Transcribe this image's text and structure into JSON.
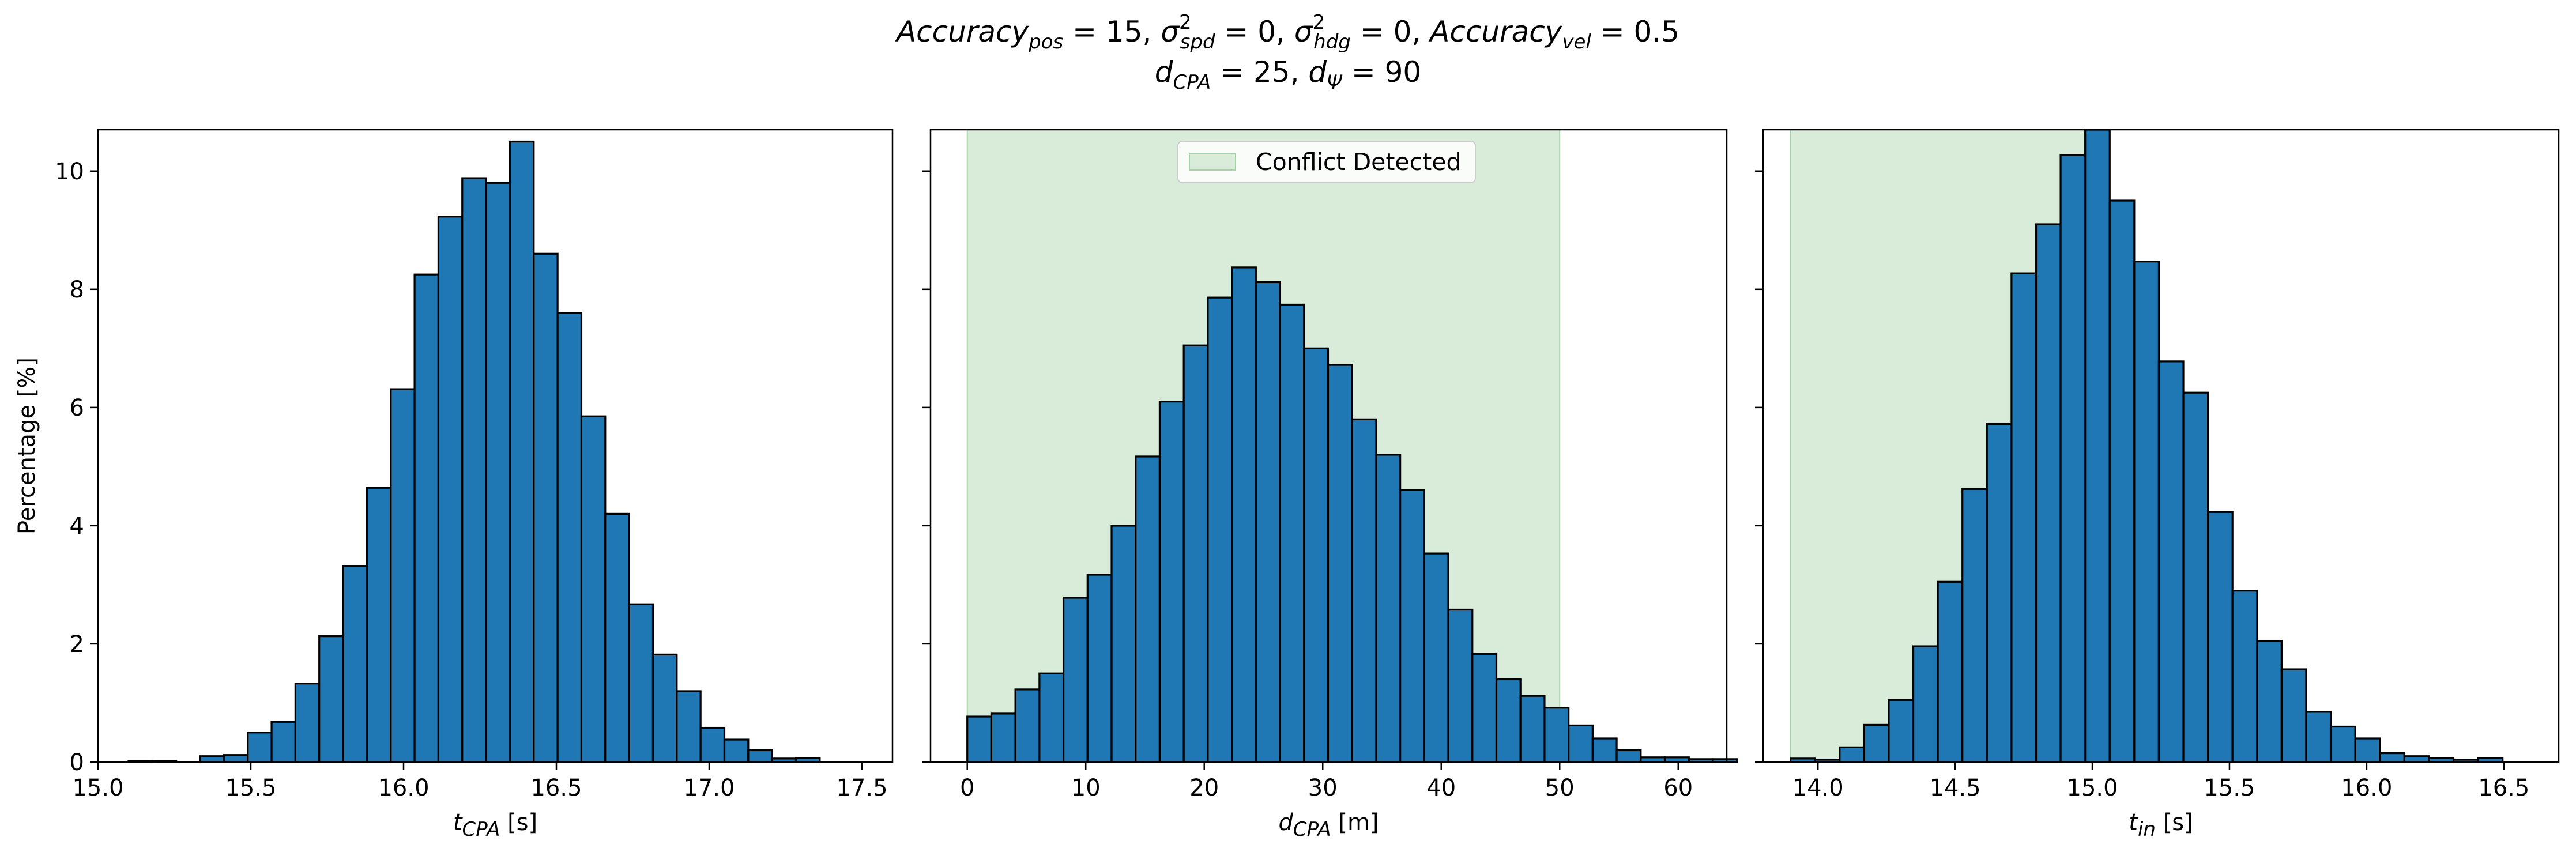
{
  "title": {
    "line1": {
      "acc_pos": "Accuracy",
      "acc_pos_sub": "pos",
      "acc_pos_val": " = 15, ",
      "sigma_spd": "σ",
      "sigma_spd_sup": "2",
      "sigma_spd_sub": "spd",
      "sigma_spd_val": " = 0, ",
      "sigma_hdg": "σ",
      "sigma_hdg_sup": "2",
      "sigma_hdg_sub": "hdg",
      "sigma_hdg_val": " = 0, ",
      "acc_vel": "Accuracy",
      "acc_vel_sub": "vel",
      "acc_vel_val": " = 0.5"
    },
    "line2": {
      "dcpa": "d",
      "dcpa_sub": "CPA",
      "dcpa_val": " = 25, ",
      "dpsi": "d",
      "dpsi_sub": "Ψ",
      "dpsi_val": " = 90"
    }
  },
  "colors": {
    "bar_fill": "#1f77b4",
    "bar_edge": "#000000",
    "conflict_fill": "#d9ecd9",
    "conflict_edge": "#a6d3a6"
  },
  "chart_data": [
    {
      "type": "bar",
      "ylabel": "Percentage [%]",
      "xlabel": {
        "var": "t",
        "sub": "CPA",
        "unit": " [s]"
      },
      "xlim": [
        15.0,
        17.6
      ],
      "ylim": [
        0,
        10.7
      ],
      "xticks": [
        {
          "v": 15.0,
          "label": "15.0"
        },
        {
          "v": 15.5,
          "label": "15.5"
        },
        {
          "v": 16.0,
          "label": "16.0"
        },
        {
          "v": 16.5,
          "label": "16.5"
        },
        {
          "v": 17.0,
          "label": "17.0"
        },
        {
          "v": 17.5,
          "label": "17.5"
        }
      ],
      "yticks": [
        {
          "v": 0,
          "label": "0"
        },
        {
          "v": 2,
          "label": "2"
        },
        {
          "v": 4,
          "label": "4"
        },
        {
          "v": 6,
          "label": "6"
        },
        {
          "v": 8,
          "label": "8"
        },
        {
          "v": 10,
          "label": "10"
        }
      ],
      "bin_start": 15.1,
      "bin_width": 0.078,
      "values": [
        0.02,
        0.02,
        0.0,
        0.1,
        0.12,
        0.5,
        0.68,
        1.33,
        2.13,
        3.32,
        4.64,
        6.31,
        8.25,
        9.23,
        9.88,
        9.8,
        10.5,
        8.6,
        7.6,
        5.85,
        4.2,
        2.67,
        1.82,
        1.2,
        0.58,
        0.38,
        0.2,
        0.06,
        0.07,
        0.0
      ],
      "conflict": null
    },
    {
      "type": "bar",
      "ylabel": "",
      "xlabel": {
        "var": "d",
        "sub": "CPA",
        "unit": " [m]"
      },
      "xlim": [
        -3.1,
        64.1
      ],
      "ylim": [
        0,
        10.7
      ],
      "xticks": [
        {
          "v": 0,
          "label": "0"
        },
        {
          "v": 10,
          "label": "10"
        },
        {
          "v": 20,
          "label": "20"
        },
        {
          "v": 30,
          "label": "30"
        },
        {
          "v": 40,
          "label": "40"
        },
        {
          "v": 50,
          "label": "50"
        },
        {
          "v": 60,
          "label": "60"
        }
      ],
      "yticks": [
        {
          "v": 0,
          "label": ""
        },
        {
          "v": 2,
          "label": ""
        },
        {
          "v": 4,
          "label": ""
        },
        {
          "v": 6,
          "label": ""
        },
        {
          "v": 8,
          "label": ""
        },
        {
          "v": 10,
          "label": ""
        }
      ],
      "bin_start": 0.0,
      "bin_width": 2.03,
      "values": [
        0.77,
        0.82,
        1.23,
        1.5,
        2.78,
        3.17,
        4.0,
        5.17,
        6.1,
        7.05,
        7.86,
        8.37,
        8.12,
        7.74,
        7.0,
        6.72,
        5.8,
        5.2,
        4.6,
        3.53,
        2.58,
        1.83,
        1.4,
        1.12,
        0.92,
        0.62,
        0.4,
        0.2,
        0.08,
        0.08,
        0.05,
        0.05
      ],
      "conflict": {
        "x0": 0,
        "x1": 50,
        "label": "Conflict Detected"
      }
    },
    {
      "type": "bar",
      "ylabel": "",
      "xlabel": {
        "var": "t",
        "sub": "in",
        "unit": " [s]"
      },
      "xlim": [
        13.8,
        16.7
      ],
      "ylim": [
        0,
        10.7
      ],
      "xticks": [
        {
          "v": 14.0,
          "label": "14.0"
        },
        {
          "v": 14.5,
          "label": "14.5"
        },
        {
          "v": 15.0,
          "label": "15.0"
        },
        {
          "v": 15.5,
          "label": "15.5"
        },
        {
          "v": 16.0,
          "label": "16.0"
        },
        {
          "v": 16.5,
          "label": "16.5"
        }
      ],
      "yticks": [
        {
          "v": 0,
          "label": ""
        },
        {
          "v": 2,
          "label": ""
        },
        {
          "v": 4,
          "label": ""
        },
        {
          "v": 6,
          "label": ""
        },
        {
          "v": 8,
          "label": ""
        },
        {
          "v": 10,
          "label": ""
        }
      ],
      "bin_start": 13.9,
      "bin_width": 0.0895,
      "values": [
        0.06,
        0.04,
        0.25,
        0.63,
        1.05,
        1.96,
        3.05,
        4.62,
        5.72,
        8.27,
        9.1,
        10.27,
        10.7,
        9.5,
        8.47,
        6.78,
        6.25,
        4.23,
        2.9,
        2.05,
        1.57,
        0.85,
        0.6,
        0.4,
        0.15,
        0.1,
        0.07,
        0.04,
        0.07
      ],
      "conflict": {
        "x0": 13.9,
        "x1": 14.985,
        "label": ""
      }
    }
  ]
}
